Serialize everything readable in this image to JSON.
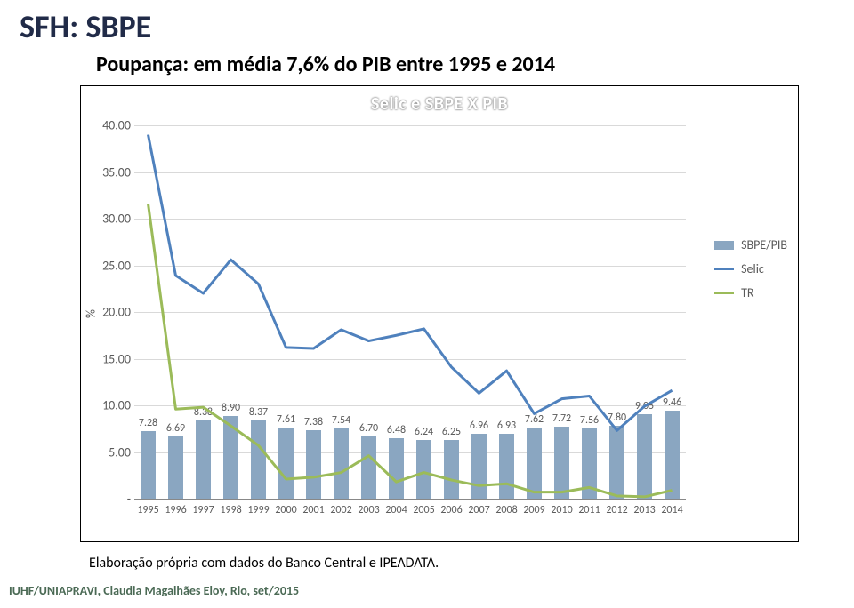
{
  "page_title": "SFH: SBPE",
  "subtitle": "Poupança: em média 7,6% do PIB entre 1995 e 2014",
  "chart": {
    "title": "Selic e SBPE X PIB",
    "y_label": "%",
    "y_min": 0,
    "y_max": 40,
    "y_tick_step": 5,
    "y_ticks": [
      "-",
      "5.00",
      "10.00",
      "15.00",
      "20.00",
      "25.00",
      "30.00",
      "35.00",
      "40.00"
    ],
    "years": [
      "1995",
      "1996",
      "1997",
      "1998",
      "1999",
      "2000",
      "2001",
      "2002",
      "2003",
      "2004",
      "2005",
      "2006",
      "2007",
      "2008",
      "2009",
      "2010",
      "2011",
      "2012",
      "2013",
      "2014"
    ],
    "sbpe": {
      "values": [
        7.28,
        6.69,
        8.38,
        8.9,
        8.37,
        7.61,
        7.38,
        7.54,
        6.7,
        6.48,
        6.24,
        6.25,
        6.96,
        6.93,
        7.62,
        7.72,
        7.56,
        7.8,
        9.05,
        9.46
      ],
      "color": "#8aa6c1",
      "label_color": "#5a5a5a",
      "bar_width": 0.55
    },
    "selic": {
      "values": [
        39.0,
        23.9,
        22.0,
        25.6,
        23.0,
        16.2,
        16.1,
        18.1,
        16.9,
        17.5,
        18.2,
        14.1,
        11.3,
        13.7,
        9.1,
        10.7,
        11.0,
        7.3,
        9.9,
        11.6
      ],
      "color": "#4f81bd",
      "line_width": 3
    },
    "tr": {
      "values": [
        31.6,
        9.6,
        9.8,
        7.8,
        5.7,
        2.1,
        2.3,
        2.8,
        4.6,
        1.8,
        2.8,
        2.0,
        1.4,
        1.6,
        0.7,
        0.7,
        1.2,
        0.3,
        0.2,
        0.9
      ],
      "color": "#9bbb59",
      "line_width": 3
    },
    "legend": {
      "sbpe": "SBPE/PIB",
      "selic": "Selic",
      "tr": "TR"
    },
    "grid_color": "#d9d9d9",
    "axis_color": "#888888",
    "background": "#ffffff",
    "label_fontsize": 12
  },
  "caption": "Elaboração própria com dados do Banco Central e IPEADATA.",
  "footer": "IUHF/UNIAPRAVI, Claudia Magalhães Eloy, Rio, set/2015"
}
